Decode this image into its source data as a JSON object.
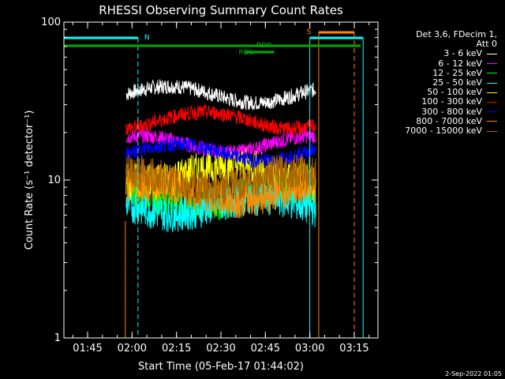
{
  "chart_data": {
    "type": "line",
    "title": "RHESSI Observing Summary Count Rates",
    "ylabel": "Count Rate (s⁻¹ detector⁻¹)",
    "xlabel": "Start Time (05-Feb-17 01:44:02)",
    "y_scale": "log",
    "ylim": [
      1,
      100
    ],
    "xlim": [
      "01:37",
      "03:23"
    ],
    "x_ticks": [
      "01:45",
      "02:00",
      "02:15",
      "02:30",
      "02:45",
      "03:00",
      "03:15"
    ],
    "y_ticks": [
      "1",
      "10",
      "100"
    ],
    "data_window": [
      "01:58",
      "03:02"
    ],
    "series": [
      {
        "name": "3 - 6 keV",
        "color": "#ffffff",
        "level": 35
      },
      {
        "name": "6 - 12 keV",
        "color": "#ff00ff",
        "level": 17
      },
      {
        "name": "12 - 25 keV",
        "color": "#00ff00",
        "level": 8
      },
      {
        "name": "25 - 50 keV",
        "color": "#00ffff",
        "level": 7
      },
      {
        "name": "50 - 100 keV",
        "color": "#ffff00",
        "level": 11
      },
      {
        "name": "100 - 300 keV",
        "color": "#ff0000",
        "level": 24
      },
      {
        "name": "300 - 800 keV",
        "color": "#0000ff",
        "level": 15
      },
      {
        "name": "800 - 7000 keV",
        "color": "#ff8800",
        "level": 8.5
      },
      {
        "name": "7000 - 15000 keV",
        "color": "#aa6600",
        "level": 10
      }
    ],
    "annotations": [
      {
        "text": "N",
        "color": "#00ffff",
        "at": "02:02"
      },
      {
        "text": "S",
        "color": "#ff8800",
        "at": "03:00"
      },
      {
        "text": "RD0",
        "color": "#00aa00"
      },
      {
        "text": "RD6",
        "color": "#00aa00"
      }
    ],
    "night_intervals": [
      [
        "01:37",
        "02:02"
      ],
      [
        "03:00",
        "03:18"
      ]
    ],
    "saa_intervals": [
      [
        "03:03",
        "03:15"
      ]
    ]
  },
  "legend": {
    "header_line1": "Det 3,6, FDecim 1,",
    "header_line2": "Att 0"
  },
  "footer": {
    "timestamp": "2-Sep-2022 01:05"
  }
}
